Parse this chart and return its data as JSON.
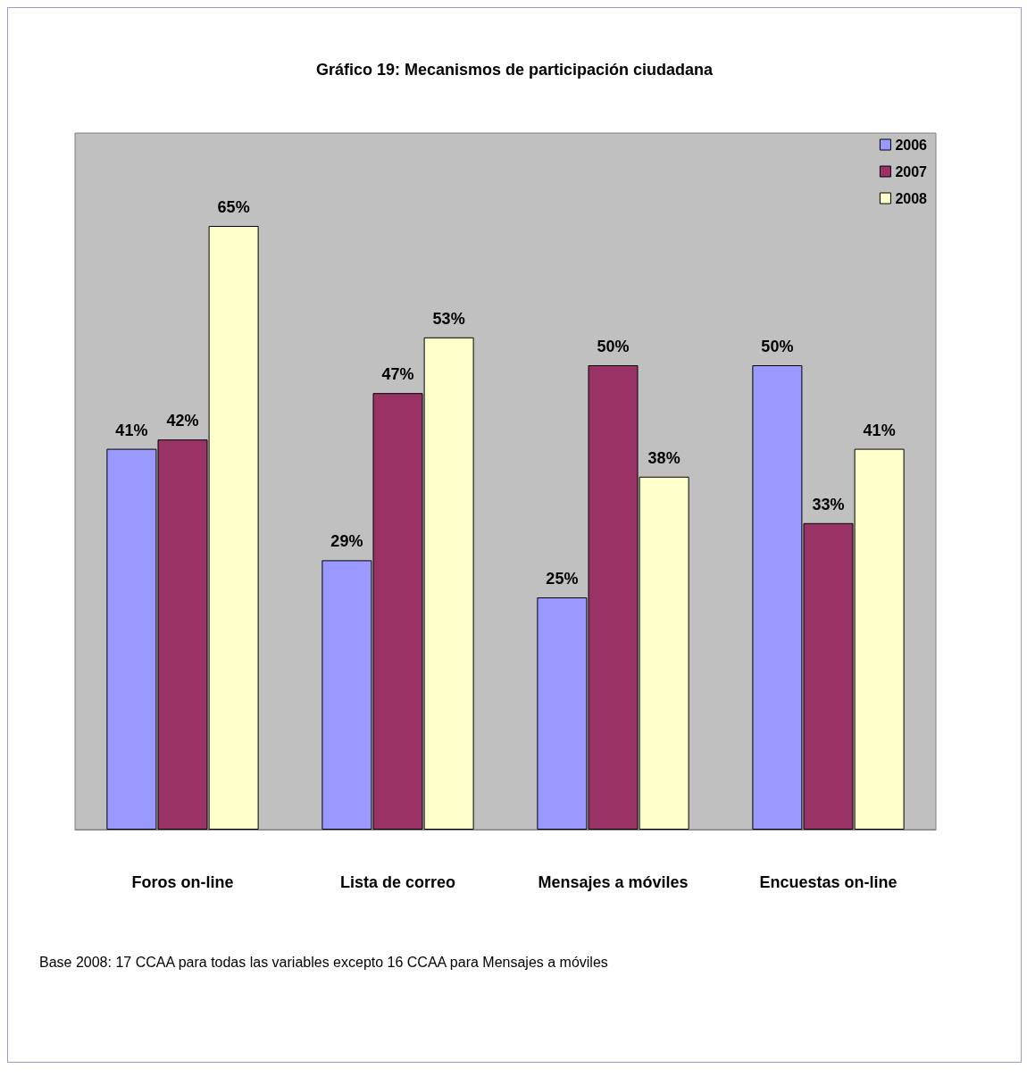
{
  "chart_data": {
    "type": "bar",
    "title": "Gráfico 19: Mecanismos de participación ciudadana",
    "categories": [
      "Foros on-line",
      "Lista de correo",
      "Mensajes a móviles",
      "Encuestas on-line"
    ],
    "series": [
      {
        "name": "2006",
        "color": "#9999ff",
        "values": [
          41,
          29,
          25,
          50
        ],
        "value_labels": [
          "41%",
          "29%",
          "25%",
          "50%"
        ]
      },
      {
        "name": "2007",
        "color": "#993366",
        "values": [
          42,
          47,
          50,
          33
        ],
        "value_labels": [
          "42%",
          "47%",
          "50%",
          "33%"
        ]
      },
      {
        "name": "2008",
        "color": "#ffffcc",
        "values": [
          65,
          53,
          38,
          41
        ],
        "value_labels": [
          "65%",
          "53%",
          "38%",
          "41%"
        ]
      }
    ],
    "legend": "top right",
    "grid": false,
    "annotations": [
      "Base 2008: 17 CCAA para todas las variables excepto 16 CCAA para Mensajes a móviles"
    ]
  }
}
